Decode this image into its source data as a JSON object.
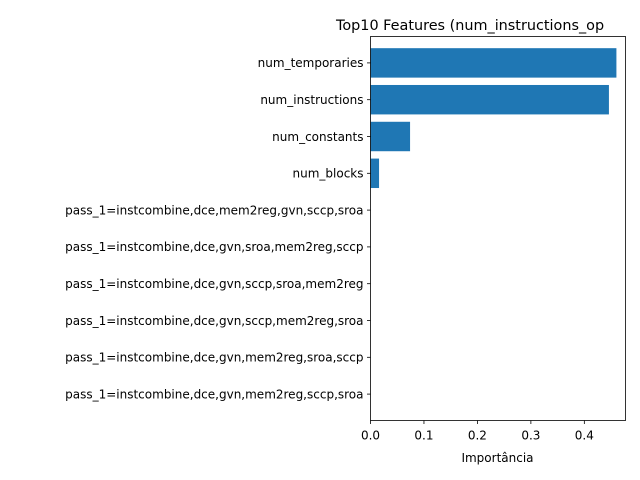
{
  "chart_data": {
    "type": "bar",
    "orientation": "horizontal",
    "title": "Top10 Features (num_instructions_op",
    "xlabel": "Importância",
    "ylabel": "",
    "xlim": [
      0,
      0.477
    ],
    "xticks": [
      "0.0",
      "0.1",
      "0.2",
      "0.3",
      "0.4"
    ],
    "categories": [
      "num_temporaries",
      "num_instructions",
      "num_constants",
      "num_blocks",
      "pass_1=instcombine,dce,mem2reg,gvn,sccp,sroa",
      "pass_1=instcombine,dce,gvn,sroa,mem2reg,sccp",
      "pass_1=instcombine,dce,gvn,sccp,sroa,mem2reg",
      "pass_1=instcombine,dce,gvn,sccp,mem2reg,sroa",
      "pass_1=instcombine,dce,gvn,mem2reg,sroa,sccp",
      "pass_1=instcombine,dce,gvn,mem2reg,sccp,sroa"
    ],
    "values": [
      0.46,
      0.446,
      0.074,
      0.016,
      0,
      0,
      0,
      0,
      0,
      0
    ],
    "bar_color": "#1f77b4",
    "grid": false,
    "legend": "none"
  }
}
